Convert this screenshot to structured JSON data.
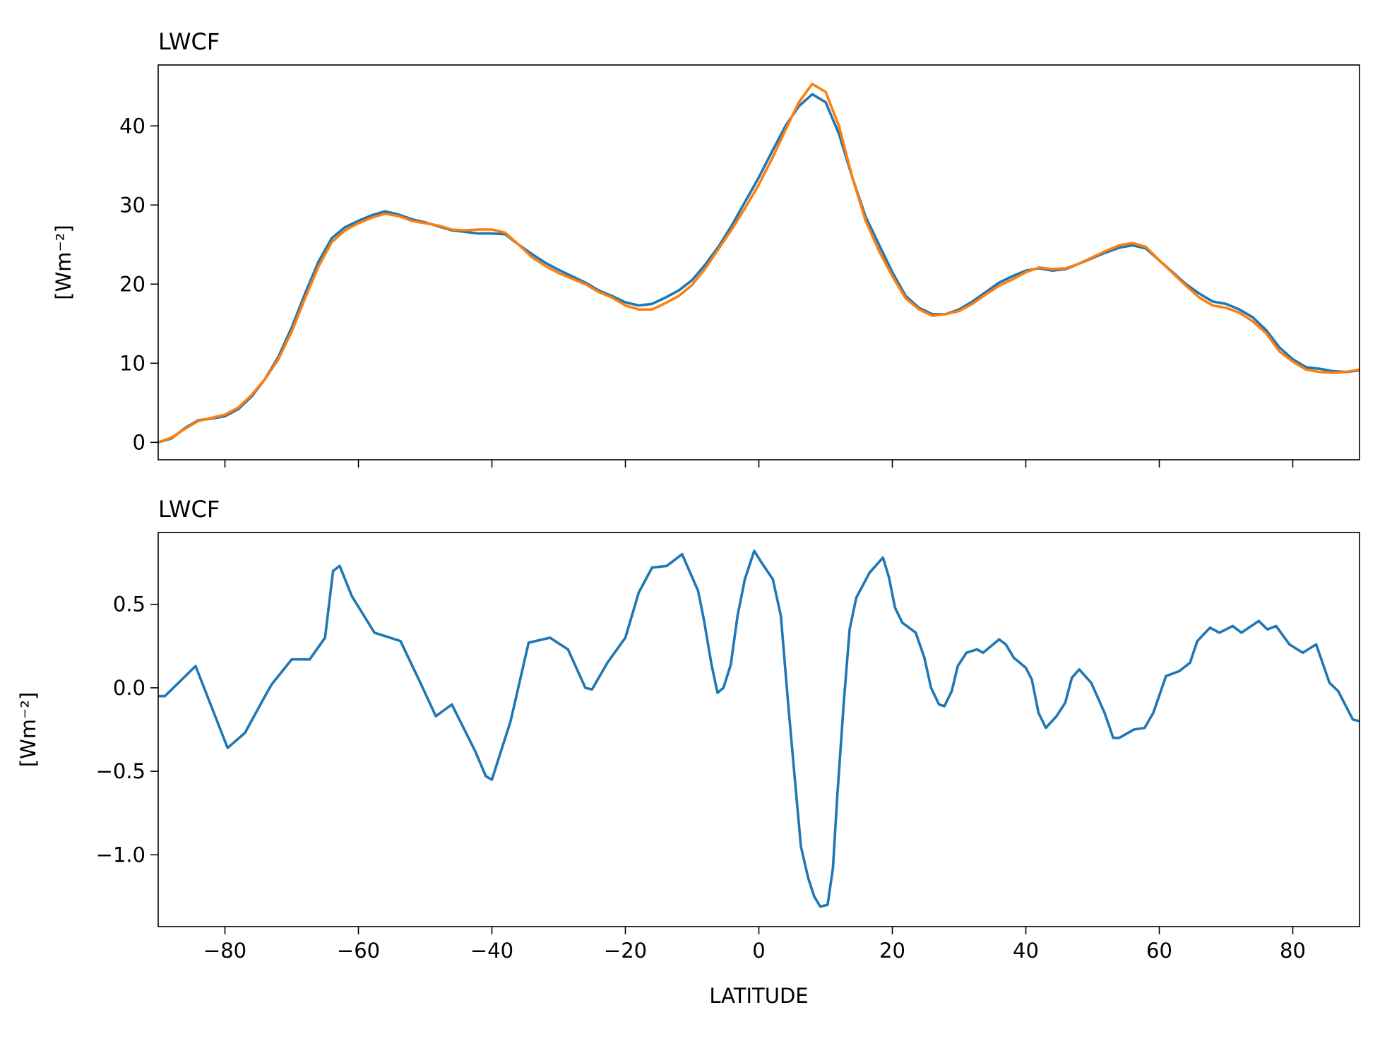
{
  "chart_data": [
    {
      "type": "line",
      "title": "LWCF",
      "ylabel": "[Wm⁻²]",
      "xlim": [
        -90,
        90
      ],
      "ylim": [
        -2.2,
        47.7
      ],
      "xticks": [
        -80,
        -60,
        -40,
        -20,
        0,
        20,
        40,
        60,
        80
      ],
      "xtick_labels": false,
      "yticks": [
        0,
        10,
        20,
        30,
        40
      ],
      "x": [
        -90,
        -88,
        -86,
        -84,
        -82,
        -80,
        -78,
        -76,
        -74,
        -72,
        -70,
        -68,
        -66,
        -64,
        -62,
        -60,
        -58,
        -56,
        -54,
        -52,
        -50,
        -48,
        -46,
        -44,
        -42,
        -40,
        -38,
        -36,
        -34,
        -32,
        -30,
        -28,
        -26,
        -24,
        -22,
        -20,
        -18,
        -16,
        -14,
        -12,
        -10,
        -8,
        -6,
        -4,
        -2,
        0,
        2,
        4,
        6,
        8,
        10,
        12,
        14,
        16,
        18,
        20,
        22,
        24,
        26,
        28,
        30,
        32,
        34,
        36,
        38,
        40,
        42,
        44,
        46,
        48,
        50,
        52,
        54,
        56,
        58,
        60,
        62,
        64,
        66,
        68,
        70,
        72,
        74,
        76,
        78,
        80,
        82,
        84,
        86,
        88,
        90
      ],
      "series": [
        {
          "color": "#1f77b4",
          "values": [
            0,
            0.5,
            1.8,
            2.8,
            3.0,
            3.3,
            4.2,
            5.8,
            8,
            10.8,
            14.5,
            18.8,
            22.8,
            25.8,
            27.2,
            28,
            28.7,
            29.2,
            28.8,
            28.2,
            27.8,
            27.3,
            26.8,
            26.6,
            26.4,
            26.4,
            26.3,
            25,
            23.8,
            22.7,
            21.8,
            21,
            20.2,
            19.2,
            18.5,
            17.7,
            17.3,
            17.5,
            18.3,
            19.2,
            20.5,
            22.5,
            24.8,
            27.5,
            30.5,
            33.5,
            36.8,
            40,
            42.5,
            44,
            43,
            39,
            33.5,
            28.5,
            25,
            21.5,
            18.5,
            17,
            16.2,
            16.2,
            16.8,
            17.8,
            19,
            20.2,
            21,
            21.7,
            22,
            21.7,
            21.9,
            22.6,
            23.3,
            24,
            24.6,
            24.9,
            24.5,
            23,
            21.5,
            20,
            18.8,
            17.8,
            17.5,
            16.8,
            15.8,
            14.2,
            12,
            10.5,
            9.5,
            9.3,
            9,
            8.9,
            9.1
          ]
        },
        {
          "color": "#ff7f0e",
          "values": [
            0,
            0.6,
            1.7,
            2.7,
            3.1,
            3.5,
            4.4,
            6,
            8,
            10.5,
            14,
            18.2,
            22.2,
            25.3,
            26.8,
            27.7,
            28.4,
            28.9,
            28.6,
            28,
            27.7,
            27.4,
            26.9,
            26.8,
            26.9,
            26.9,
            26.5,
            25,
            23.4,
            22.3,
            21.4,
            20.7,
            20,
            19,
            18.3,
            17.3,
            16.8,
            16.8,
            17.6,
            18.5,
            19.9,
            22,
            24.5,
            27,
            29.7,
            32.6,
            35.9,
            39.5,
            43,
            45.3,
            44.3,
            40,
            33.5,
            28,
            24.2,
            21,
            18.2,
            16.8,
            16,
            16.2,
            16.6,
            17.5,
            18.7,
            19.8,
            20.6,
            21.5,
            22.1,
            21.9,
            22,
            22.6,
            23.4,
            24.2,
            24.9,
            25.2,
            24.7,
            23,
            21.4,
            19.8,
            18.3,
            17.3,
            17,
            16.4,
            15.3,
            13.8,
            11.5,
            10.2,
            9.2,
            8.9,
            8.8,
            8.9,
            9.2
          ]
        }
      ]
    },
    {
      "type": "line",
      "title": "LWCF",
      "ylabel": "[Wm⁻²]",
      "xlabel": "LATITUDE",
      "xlim": [
        -90,
        90
      ],
      "ylim": [
        -1.43,
        0.93
      ],
      "xticks": [
        {
          "value": -80,
          "label": "−80"
        },
        {
          "value": -60,
          "label": "−60"
        },
        {
          "value": -40,
          "label": "−40"
        },
        {
          "value": -20,
          "label": "−20"
        },
        0,
        20,
        40,
        60,
        80
      ],
      "yticks": [
        {
          "value": -1.0,
          "label": "−1.0"
        },
        {
          "value": -0.5,
          "label": "−0.5"
        },
        {
          "value": 0,
          "label": "0.0"
        },
        0.5
      ],
      "x": [
        -90,
        -89,
        -84.4,
        -79.6,
        -77,
        -74,
        -73,
        -70,
        -67.3,
        -65,
        -63.8,
        -62.8,
        -61,
        -57.6,
        -53.7,
        -50.6,
        -48.4,
        -46,
        -42.5,
        -40.9,
        -40,
        -37.2,
        -34.5,
        -31.3,
        -28.6,
        -26,
        -25,
        -22.7,
        -20,
        -18,
        -16,
        -13.8,
        -11.5,
        -9.1,
        -8.2,
        -7.1,
        -6.2,
        -5.3,
        -4.2,
        -3.2,
        -2.1,
        -0.7,
        0.4,
        2.1,
        3.3,
        4.4,
        5.4,
        6.3,
        7.4,
        8.3,
        9.2,
        10.3,
        11.1,
        11.7,
        12.7,
        13.6,
        14.6,
        16.6,
        18.6,
        19.5,
        20.4,
        21.5,
        23.5,
        24.8,
        25.8,
        27,
        27.8,
        28.9,
        29.8,
        31.1,
        32.7,
        33.6,
        36,
        37,
        38.2,
        40,
        40.9,
        41.9,
        43,
        44.6,
        45.9,
        46.9,
        48,
        49.8,
        51.8,
        53.1,
        54,
        56.2,
        57.8,
        59.1,
        61,
        63,
        64.6,
        65.7,
        67.6,
        69,
        71,
        72.3,
        74.9,
        76.2,
        77.5,
        79.5,
        81.5,
        83.5,
        85.5,
        86.8,
        89,
        90
      ],
      "series": [
        {
          "color": "#1f77b4",
          "values": [
            -0.05,
            -0.05,
            0.13,
            -0.36,
            -0.27,
            -0.05,
            0.02,
            0.17,
            0.17,
            0.3,
            0.7,
            0.73,
            0.55,
            0.33,
            0.28,
            0.02,
            -0.17,
            -0.1,
            -0.38,
            -0.53,
            -0.55,
            -0.2,
            0.27,
            0.3,
            0.23,
            0.0,
            -0.01,
            0.15,
            0.3,
            0.57,
            0.72,
            0.73,
            0.8,
            0.58,
            0.4,
            0.14,
            -0.03,
            0.0,
            0.14,
            0.43,
            0.65,
            0.82,
            0.75,
            0.65,
            0.43,
            -0.1,
            -0.55,
            -0.95,
            -1.14,
            -1.25,
            -1.31,
            -1.3,
            -1.08,
            -0.68,
            -0.1,
            0.35,
            0.54,
            0.69,
            0.78,
            0.66,
            0.48,
            0.39,
            0.33,
            0.18,
            0.0,
            -0.1,
            -0.11,
            -0.02,
            0.13,
            0.21,
            0.23,
            0.21,
            0.29,
            0.26,
            0.18,
            0.12,
            0.05,
            -0.15,
            -0.24,
            -0.17,
            -0.09,
            0.06,
            0.11,
            0.03,
            -0.15,
            -0.3,
            -0.3,
            -0.25,
            -0.24,
            -0.15,
            0.07,
            0.1,
            0.15,
            0.28,
            0.36,
            0.33,
            0.37,
            0.33,
            0.4,
            0.35,
            0.37,
            0.26,
            0.21,
            0.26,
            0.03,
            -0.02,
            -0.19,
            -0.2
          ]
        }
      ]
    }
  ]
}
